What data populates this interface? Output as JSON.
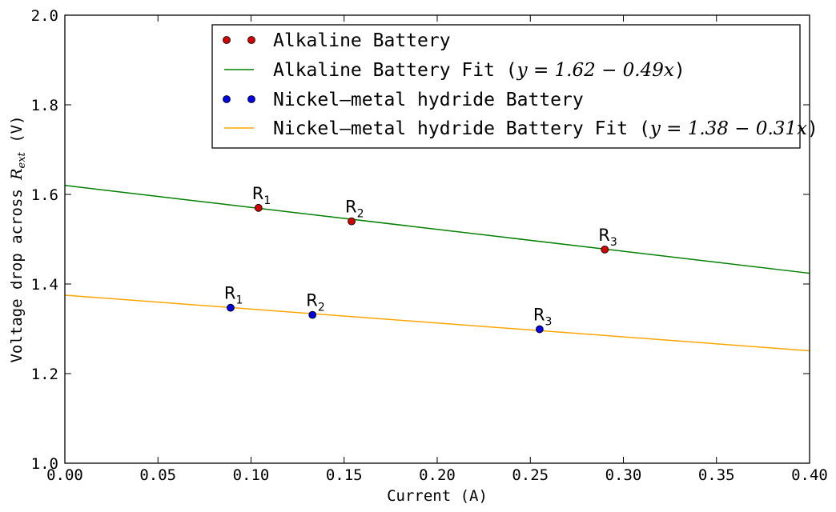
{
  "chart_data": {
    "type": "scatter",
    "title": "",
    "xlabel": "Current (A)",
    "ylabel": {
      "prefix": "Voltage drop across ",
      "symbol": "R",
      "symbol_sub": "ext",
      "suffix": " (V)"
    },
    "xlim": [
      0.0,
      0.4
    ],
    "ylim": [
      1.0,
      2.0
    ],
    "xticks": [
      0.0,
      0.05,
      0.1,
      0.15,
      0.2,
      0.25,
      0.3,
      0.35,
      0.4
    ],
    "xtick_labels": [
      "0.00",
      "0.05",
      "0.10",
      "0.15",
      "0.20",
      "0.25",
      "0.30",
      "0.35",
      "0.40"
    ],
    "yticks": [
      1.0,
      1.2,
      1.4,
      1.6,
      1.8,
      2.0
    ],
    "ytick_labels": [
      "1.0",
      "1.2",
      "1.4",
      "1.6",
      "1.8",
      "2.0"
    ],
    "grid": false,
    "legend_position": "top-right",
    "series": [
      {
        "name": "Alkaline Battery",
        "kind": "points",
        "color": "#d00000",
        "points": [
          {
            "x": 0.104,
            "y": 1.57,
            "label": "R",
            "sub": "1"
          },
          {
            "x": 0.154,
            "y": 1.54,
            "label": "R",
            "sub": "2"
          },
          {
            "x": 0.29,
            "y": 1.477,
            "label": "R",
            "sub": "3"
          }
        ]
      },
      {
        "name": "Alkaline Battery Fit",
        "kind": "line",
        "color": "#008000",
        "equation": "y = 1.62 − 0.49x",
        "intercept": 1.62,
        "slope": -0.49
      },
      {
        "name": "Nickel–metal hydride Battery",
        "kind": "points",
        "color": "#0000e0",
        "points": [
          {
            "x": 0.089,
            "y": 1.347,
            "label": "R",
            "sub": "1"
          },
          {
            "x": 0.133,
            "y": 1.331,
            "label": "R",
            "sub": "2"
          },
          {
            "x": 0.255,
            "y": 1.299,
            "label": "R",
            "sub": "3"
          }
        ]
      },
      {
        "name": "Nickel–metal hydride Battery Fit",
        "kind": "line",
        "color": "#ffa500",
        "equation": "y = 1.38 − 0.31x",
        "intercept": 1.375,
        "slope": -0.31
      }
    ]
  }
}
